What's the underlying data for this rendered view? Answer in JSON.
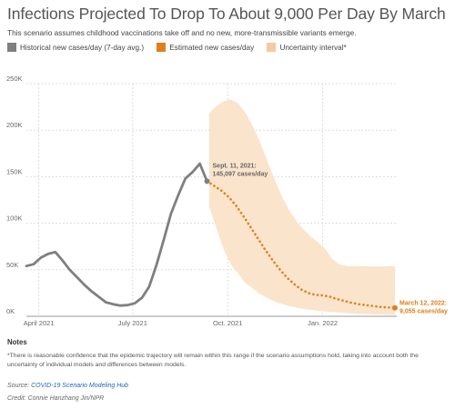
{
  "title": "Infections Projected To Drop To About 9,000 Per Day By March",
  "subtitle": "This scenario assumes childhood vaccinations take off and no new, more-transmissible variants emerge.",
  "legend": {
    "historical": "Historical new cases/day (7-day avg.)",
    "estimated": "Estimated new cases/day",
    "uncertainty": "Uncertainty interval*"
  },
  "colors": {
    "historical": "#7f7f7f",
    "estimated": "#e07f1c",
    "uncertainty": "#fbe4cc",
    "uncertainty_swatch": "#f6c9a0"
  },
  "notes": {
    "heading": "Notes",
    "text": "*There is reasonable confidence that the epidemic trajectory will remain within this range if the scenario assumptions hold, taking into account both the uncertainty of individual models and differences between models."
  },
  "source": {
    "prefix": "Source: ",
    "link_text": "COVID-19 Scenario Modeling Hub"
  },
  "credit": "Credit: Connie Hanzhang Jin/NPR",
  "chart_data": {
    "type": "line",
    "x_axis": {
      "type": "date",
      "range": [
        "2021-03-20",
        "2022-03-12"
      ],
      "ticks": [
        {
          "date": "2021-04-01",
          "label": "April 2021"
        },
        {
          "date": "2021-07-01",
          "label": "July 2021"
        },
        {
          "date": "2021-10-01",
          "label": "Oct. 2021"
        },
        {
          "date": "2022-01-01",
          "label": "Jan. 2022"
        }
      ]
    },
    "y_axis": {
      "range": [
        0,
        250000
      ],
      "ticks": [
        {
          "value": 0,
          "label": "0K"
        },
        {
          "value": 50000,
          "label": "50K"
        },
        {
          "value": 100000,
          "label": "100K"
        },
        {
          "value": 150000,
          "label": "150K"
        },
        {
          "value": 200000,
          "label": "200K"
        },
        {
          "value": 250000,
          "label": "250K"
        }
      ]
    },
    "grid": true,
    "series": [
      {
        "name": "Historical new cases/day (7-day avg.)",
        "style": "solid",
        "points": [
          [
            "2021-03-20",
            54000
          ],
          [
            "2021-03-27",
            56000
          ],
          [
            "2021-04-03",
            63000
          ],
          [
            "2021-04-10",
            67000
          ],
          [
            "2021-04-17",
            69000
          ],
          [
            "2021-04-24",
            60000
          ],
          [
            "2021-05-01",
            50000
          ],
          [
            "2021-05-08",
            42000
          ],
          [
            "2021-05-15",
            34000
          ],
          [
            "2021-05-22",
            27000
          ],
          [
            "2021-05-29",
            21000
          ],
          [
            "2021-06-05",
            15000
          ],
          [
            "2021-06-12",
            13000
          ],
          [
            "2021-06-19",
            11500
          ],
          [
            "2021-06-26",
            12000
          ],
          [
            "2021-07-03",
            14000
          ],
          [
            "2021-07-10",
            20000
          ],
          [
            "2021-07-17",
            32000
          ],
          [
            "2021-07-24",
            55000
          ],
          [
            "2021-07-31",
            82000
          ],
          [
            "2021-08-07",
            110000
          ],
          [
            "2021-08-14",
            130000
          ],
          [
            "2021-08-21",
            148000
          ],
          [
            "2021-08-28",
            155000
          ],
          [
            "2021-09-04",
            164000
          ],
          [
            "2021-09-11",
            145097
          ]
        ]
      },
      {
        "name": "Estimated new cases/day",
        "style": "dotted",
        "points": [
          [
            "2021-09-11",
            145097
          ],
          [
            "2021-09-18",
            140000
          ],
          [
            "2021-09-25",
            135000
          ],
          [
            "2021-10-02",
            128000
          ],
          [
            "2021-10-09",
            119000
          ],
          [
            "2021-10-16",
            108000
          ],
          [
            "2021-10-23",
            96000
          ],
          [
            "2021-10-30",
            84000
          ],
          [
            "2021-11-06",
            72000
          ],
          [
            "2021-11-13",
            61000
          ],
          [
            "2021-11-20",
            51000
          ],
          [
            "2021-11-27",
            42000
          ],
          [
            "2021-12-04",
            35000
          ],
          [
            "2021-12-11",
            29000
          ],
          [
            "2021-12-18",
            25000
          ],
          [
            "2021-12-25",
            23000
          ],
          [
            "2022-01-01",
            22500
          ],
          [
            "2022-01-08",
            21000
          ],
          [
            "2022-01-15",
            18500
          ],
          [
            "2022-01-22",
            16500
          ],
          [
            "2022-01-29",
            14500
          ],
          [
            "2022-02-05",
            13000
          ],
          [
            "2022-02-12",
            12000
          ],
          [
            "2022-02-19",
            11000
          ],
          [
            "2022-02-26",
            10000
          ],
          [
            "2022-03-05",
            9500
          ],
          [
            "2022-03-12",
            9055
          ]
        ]
      }
    ],
    "uncertainty_band": {
      "name": "Uncertainty interval*",
      "upper": [
        [
          "2021-09-13",
          218000
        ],
        [
          "2021-09-20",
          226000
        ],
        [
          "2021-09-27",
          231000
        ],
        [
          "2021-10-04",
          233000
        ],
        [
          "2021-10-11",
          229000
        ],
        [
          "2021-10-18",
          219000
        ],
        [
          "2021-10-25",
          205000
        ],
        [
          "2021-11-01",
          188000
        ],
        [
          "2021-11-08",
          168000
        ],
        [
          "2021-11-15",
          148000
        ],
        [
          "2021-11-22",
          130000
        ],
        [
          "2021-11-29",
          115000
        ],
        [
          "2021-12-06",
          103000
        ],
        [
          "2021-12-13",
          94000
        ],
        [
          "2021-12-20",
          86000
        ],
        [
          "2021-12-27",
          80000
        ],
        [
          "2022-01-03",
          73000
        ],
        [
          "2022-01-10",
          62000
        ],
        [
          "2022-01-17",
          56000
        ],
        [
          "2022-01-24",
          54000
        ],
        [
          "2022-02-07",
          54000
        ],
        [
          "2022-02-21",
          53500
        ],
        [
          "2022-03-12",
          54000
        ]
      ],
      "lower": [
        [
          "2022-03-12",
          1500
        ],
        [
          "2022-02-21",
          2000
        ],
        [
          "2022-02-07",
          2500
        ],
        [
          "2022-01-24",
          3500
        ],
        [
          "2022-01-10",
          4500
        ],
        [
          "2021-12-27",
          6000
        ],
        [
          "2021-12-13",
          8000
        ],
        [
          "2021-11-29",
          11000
        ],
        [
          "2021-11-15",
          16000
        ],
        [
          "2021-11-01",
          24000
        ],
        [
          "2021-10-18",
          36000
        ],
        [
          "2021-10-04",
          56000
        ],
        [
          "2021-09-27",
          72000
        ],
        [
          "2021-09-20",
          95000
        ],
        [
          "2021-09-13",
          118000
        ]
      ]
    },
    "annotations": [
      {
        "line1": "Sept. 11, 2021:",
        "line2": "145,097 cases/day",
        "date": "2021-09-11",
        "value": 145097
      },
      {
        "line1": "March 12, 2022:",
        "line2": "9,055 cases/day",
        "date": "2022-03-12",
        "value": 9055
      }
    ]
  }
}
